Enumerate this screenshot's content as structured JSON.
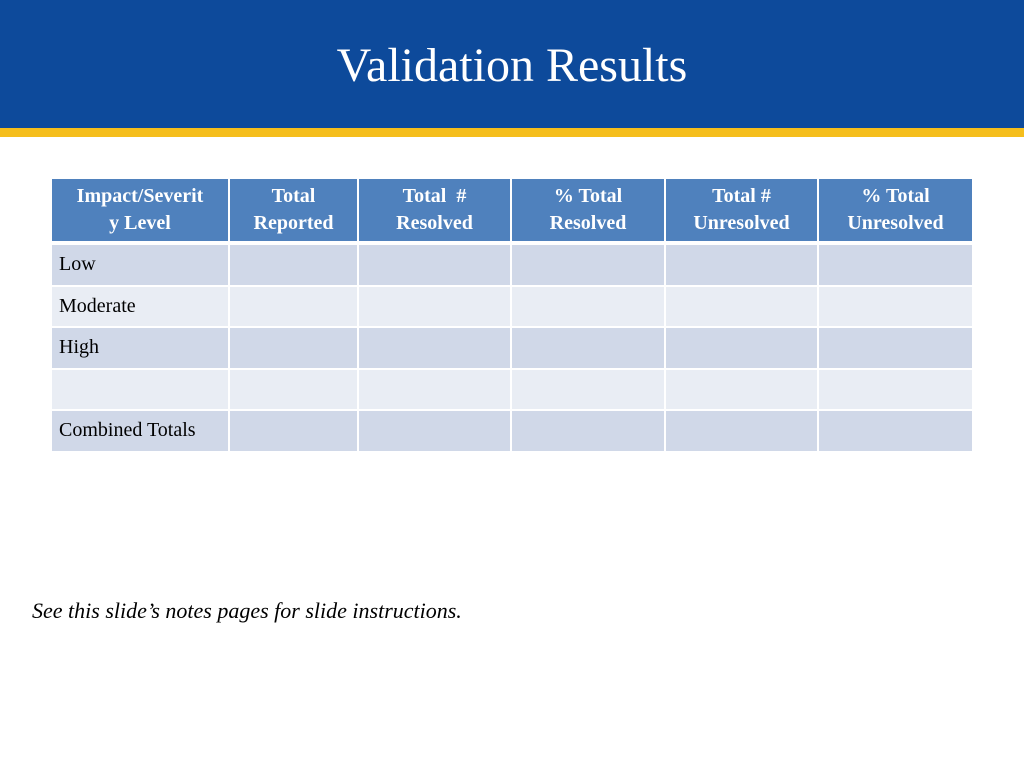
{
  "slide": {
    "title": "Validation Results",
    "note": "See this slide’s notes pages for slide instructions."
  },
  "colors": {
    "header_bg": "#0d4a9b",
    "header_stripe": "#f5be1c",
    "table_header_bg": "#4f81bd",
    "row_odd_bg": "#d0d8e8",
    "row_even_bg": "#e9edf4"
  },
  "table": {
    "headers": [
      "Impact/Severity Level",
      "Total Reported",
      "Total  # Resolved",
      "% Total Resolved",
      "Total # Unresolved",
      "% Total Unresolved"
    ],
    "rows": [
      [
        "Low",
        "",
        "",
        "",
        "",
        ""
      ],
      [
        "Moderate",
        "",
        "",
        "",
        "",
        ""
      ],
      [
        "High",
        "",
        "",
        "",
        "",
        ""
      ],
      [
        "",
        "",
        "",
        "",
        "",
        ""
      ],
      [
        "Combined Totals",
        "",
        "",
        "",
        "",
        ""
      ]
    ]
  }
}
